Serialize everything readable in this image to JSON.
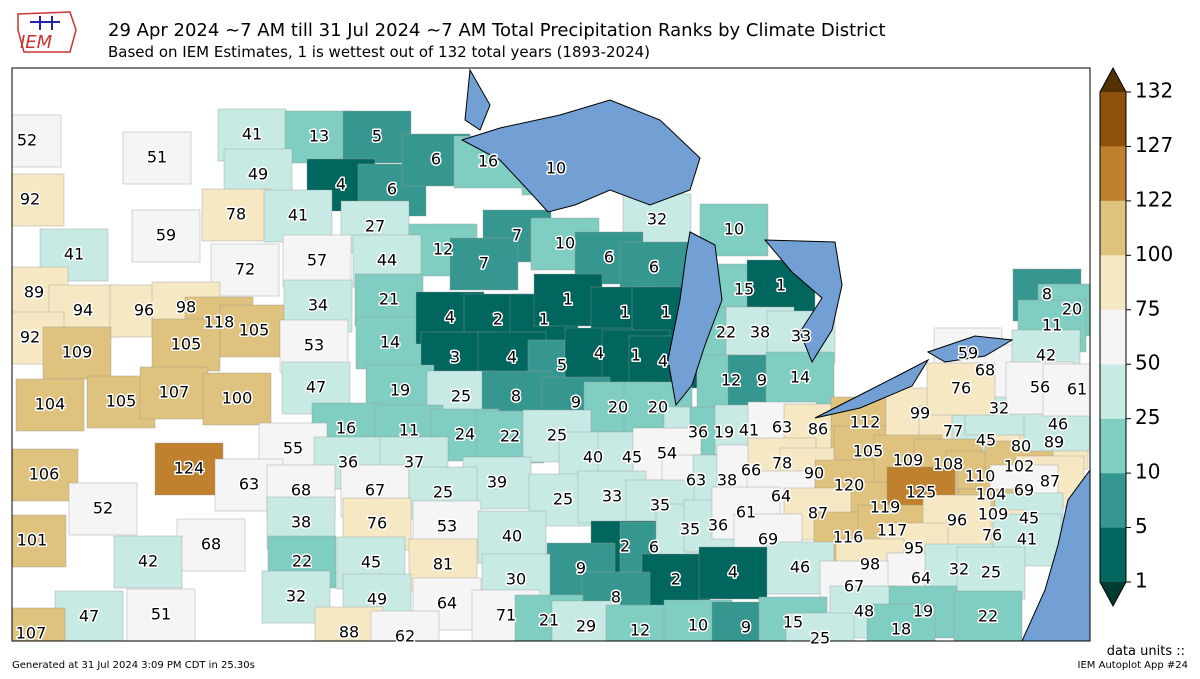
{
  "header": {
    "logo": "IEM",
    "title": "29 Apr 2024 ~7 AM till 31 Jul 2024 ~7 AM Total Precipitation Ranks by Climate District",
    "subtitle": "Based on IEM Estimates, 1 is wettest out of 132 total years (1893-2024)"
  },
  "map": {
    "labels": [
      52,
      51,
      92,
      59,
      41,
      41,
      13,
      5,
      49,
      4,
      6,
      78,
      41,
      27,
      6,
      16,
      10,
      32,
      10,
      12,
      7,
      7,
      10,
      6,
      6,
      72,
      57,
      44,
      89,
      94,
      96,
      98,
      118,
      105,
      34,
      21,
      53,
      14,
      92,
      109,
      105,
      4,
      2,
      1,
      1,
      1,
      1,
      3,
      4,
      5,
      4,
      1,
      4,
      15,
      1,
      22,
      38,
      33,
      104,
      105,
      107,
      100,
      47,
      19,
      25,
      8,
      9,
      12,
      9,
      14,
      20,
      20,
      16,
      11,
      24,
      22,
      25,
      36,
      19,
      41,
      63,
      86,
      112,
      55,
      36,
      37,
      40,
      45,
      54,
      106,
      124,
      63,
      39,
      63,
      38,
      66,
      78,
      90,
      105,
      120,
      99,
      77,
      45,
      80,
      89,
      109,
      108,
      110,
      102,
      87,
      32,
      46,
      8,
      20,
      11,
      59,
      68,
      42,
      76,
      56,
      61,
      68,
      67,
      25,
      52,
      68,
      42,
      101,
      25,
      33,
      35,
      64,
      87,
      119,
      125,
      104,
      69,
      109,
      45,
      76,
      41,
      38,
      76,
      53,
      40,
      2,
      6,
      35,
      36,
      61,
      69,
      116,
      117,
      96,
      95,
      22,
      45,
      81,
      9,
      46,
      98,
      64,
      32,
      25,
      30,
      2,
      4,
      67,
      32,
      49,
      64,
      8,
      47,
      51,
      71,
      21,
      29,
      12,
      10,
      9,
      15,
      48,
      19,
      22,
      107,
      88,
      62,
      18,
      25
    ]
  },
  "colorbar": {
    "levels": [
      1,
      5,
      10,
      25,
      50,
      75,
      100,
      122,
      127,
      132
    ],
    "colors": [
      "#01665e",
      "#35978f",
      "#80cdc1",
      "#c7eae5",
      "#f5f5f5",
      "#f6e8c3",
      "#dfc27d",
      "#bf812d",
      "#8c510a"
    ],
    "under": "#003c30",
    "over": "#543005"
  },
  "footer": {
    "units": "data units ::",
    "generated": "Generated at 31 Jul 2024 3:09 PM CDT in 25.30s",
    "app": "IEM Autoplot App #24"
  }
}
